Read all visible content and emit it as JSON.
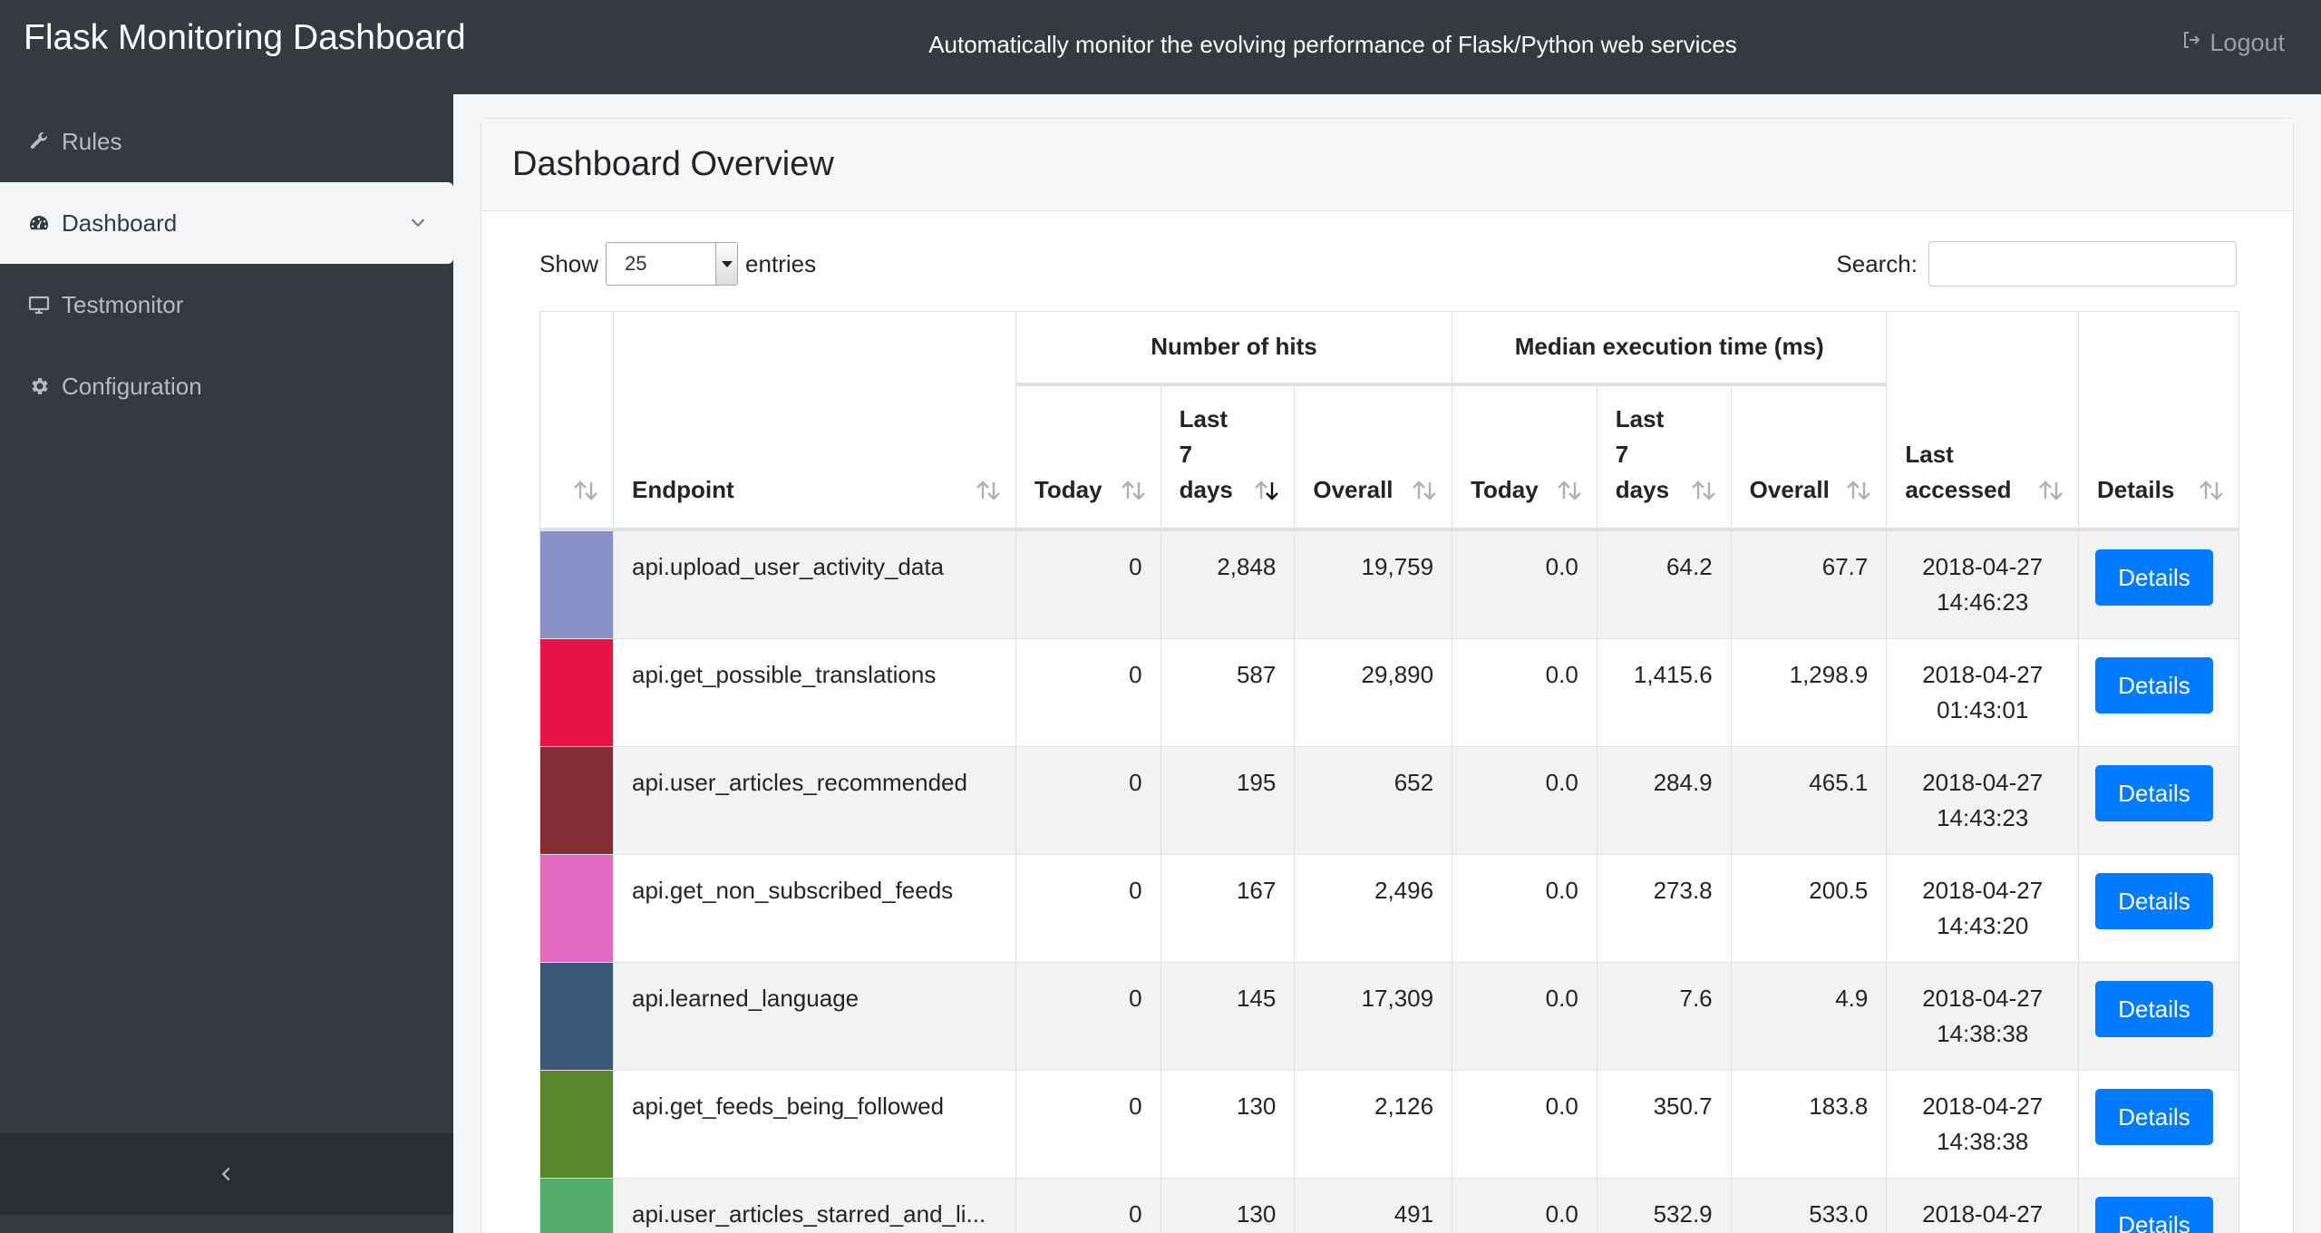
{
  "navbar": {
    "brand": "Flask Monitoring Dashboard",
    "tagline": "Automatically monitor the evolving performance of Flask/Python web services",
    "logout_label": "Logout",
    "logout_icon": "sign-out-icon"
  },
  "sidebar": {
    "items": [
      {
        "label": "Rules",
        "icon": "wrench-icon"
      },
      {
        "label": "Dashboard",
        "icon": "dashboard-icon",
        "active": true
      },
      {
        "label": "Testmonitor",
        "icon": "monitor-icon"
      },
      {
        "label": "Configuration",
        "icon": "gear-icon"
      }
    ],
    "collapse_icon": "chevron-left-icon"
  },
  "card": {
    "title": "Dashboard Overview"
  },
  "controls": {
    "show_label": "Show",
    "entries_value": "25",
    "entries_label": "entries",
    "search_label": "Search:",
    "search_value": ""
  },
  "table": {
    "group_headers": {
      "hits": "Number of hits",
      "median": "Median execution time (ms)"
    },
    "headers": {
      "endpoint": "Endpoint",
      "hits_today": "Today",
      "hits_week_1": "Last",
      "hits_week_2": "7",
      "hits_week_3": "days",
      "hits_overall": "Overall",
      "med_today": "Today",
      "med_week_1": "Last",
      "med_week_2": "7",
      "med_week_3": "days",
      "med_overall": "Overall",
      "last_1": "Last",
      "last_2": "accessed",
      "details": "Details"
    },
    "rows": [
      {
        "color": "#8a91c7",
        "endpoint": "api.upload_user_activity_data",
        "hits_today": "0",
        "hits_week": "2,848",
        "hits_overall": "19,759",
        "med_today": "0.0",
        "med_week": "64.2",
        "med_overall": "67.7",
        "date": "2018-04-27",
        "time": "14:46:23",
        "button": "Details"
      },
      {
        "color": "#e81447",
        "endpoint": "api.get_possible_translations",
        "hits_today": "0",
        "hits_week": "587",
        "hits_overall": "29,890",
        "med_today": "0.0",
        "med_week": "1,415.6",
        "med_overall": "1,298.9",
        "date": "2018-04-27",
        "time": "01:43:01",
        "button": "Details"
      },
      {
        "color": "#852d35",
        "endpoint": "api.user_articles_recommended",
        "hits_today": "0",
        "hits_week": "195",
        "hits_overall": "652",
        "med_today": "0.0",
        "med_week": "284.9",
        "med_overall": "465.1",
        "date": "2018-04-27",
        "time": "14:43:23",
        "button": "Details"
      },
      {
        "color": "#e26ac0",
        "endpoint": "api.get_non_subscribed_feeds",
        "hits_today": "0",
        "hits_week": "167",
        "hits_overall": "2,496",
        "med_today": "0.0",
        "med_week": "273.8",
        "med_overall": "200.5",
        "date": "2018-04-27",
        "time": "14:43:20",
        "button": "Details"
      },
      {
        "color": "#3a5877",
        "endpoint": "api.learned_language",
        "hits_today": "0",
        "hits_week": "145",
        "hits_overall": "17,309",
        "med_today": "0.0",
        "med_week": "7.6",
        "med_overall": "4.9",
        "date": "2018-04-27",
        "time": "14:38:38",
        "button": "Details"
      },
      {
        "color": "#58862b",
        "endpoint": "api.get_feeds_being_followed",
        "hits_today": "0",
        "hits_week": "130",
        "hits_overall": "2,126",
        "med_today": "0.0",
        "med_week": "350.7",
        "med_overall": "183.8",
        "date": "2018-04-27",
        "time": "14:38:38",
        "button": "Details"
      },
      {
        "color": "#55ad6b",
        "endpoint": "api.user_articles_starred_and_li...",
        "hits_today": "0",
        "hits_week": "130",
        "hits_overall": "491",
        "med_today": "0.0",
        "med_week": "532.9",
        "med_overall": "533.0",
        "date": "2018-04-27",
        "time": "",
        "button": "Details"
      }
    ]
  }
}
